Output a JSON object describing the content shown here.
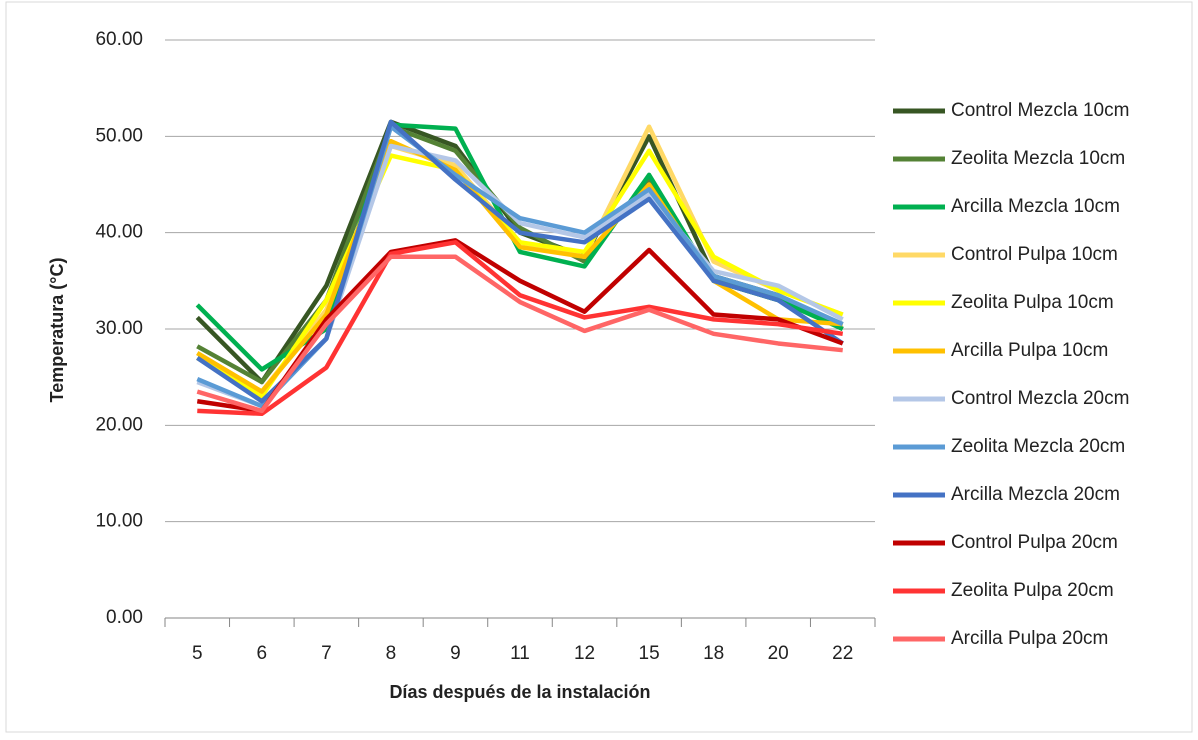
{
  "chart_data": {
    "type": "line",
    "x_label": "Días después de la instalación",
    "y_label": "Temperatura (°C)",
    "categories": [
      "5",
      "6",
      "7",
      "8",
      "9",
      "11",
      "12",
      "15",
      "18",
      "20",
      "22"
    ],
    "ylim": [
      0,
      60
    ],
    "yticks": [
      {
        "value": 0,
        "label": "0.00"
      },
      {
        "value": 10,
        "label": "10.00"
      },
      {
        "value": 20,
        "label": "20.00"
      },
      {
        "value": 30,
        "label": "30.00"
      },
      {
        "value": 40,
        "label": "40.00"
      },
      {
        "value": 50,
        "label": "50.00"
      },
      {
        "value": 60,
        "label": "60.00"
      }
    ],
    "grid": true,
    "legend": "right",
    "series": [
      {
        "name": "Control Mezcla 10cm",
        "color": "#375623",
        "values": [
          31.2,
          24.5,
          34.5,
          51.5,
          49,
          40,
          37.5,
          50,
          35.5,
          33.5,
          30
        ]
      },
      {
        "name": "Zeolita Mezcla 10cm",
        "color": "#548235",
        "values": [
          28.2,
          24.5,
          33,
          51,
          48.5,
          40.5,
          37,
          45.5,
          35,
          33,
          30.5
        ]
      },
      {
        "name": "Arcilla Mezcla 10cm",
        "color": "#00b050",
        "values": [
          32.5,
          25.8,
          30,
          51.2,
          50.8,
          38,
          36.5,
          46,
          35,
          33,
          30
        ]
      },
      {
        "name": "Control Pulpa 10cm",
        "color": "#ffd966",
        "values": [
          27.5,
          23.5,
          32,
          49,
          47,
          39,
          37.5,
          51,
          37,
          34,
          31.5
        ]
      },
      {
        "name": "Zeolita Pulpa 10cm",
        "color": "#ffff00",
        "values": [
          27,
          23,
          33,
          48,
          46.5,
          39,
          38,
          48.5,
          37.5,
          34,
          31.5
        ]
      },
      {
        "name": "Arcilla Pulpa 10cm",
        "color": "#ffc000",
        "values": [
          27.5,
          23.5,
          31.5,
          49.5,
          46.5,
          38.5,
          37.5,
          45,
          35,
          31,
          30.5
        ]
      },
      {
        "name": "Control Mezcla 20cm",
        "color": "#b4c7e7",
        "values": [
          24.5,
          22,
          29,
          49,
          47.5,
          41,
          39.5,
          44,
          36,
          34.5,
          31
        ]
      },
      {
        "name": "Zeolita Mezcla 20cm",
        "color": "#5b9bd5",
        "values": [
          24.8,
          22,
          29,
          51,
          46,
          41.5,
          40,
          44.5,
          35.5,
          33.5,
          30.5
        ]
      },
      {
        "name": "Arcilla Mezcla 20cm",
        "color": "#4472c4",
        "values": [
          27,
          22.5,
          29,
          51.5,
          45.5,
          40,
          39,
          43.5,
          35,
          33,
          28.5
        ]
      },
      {
        "name": "Control Pulpa 20cm",
        "color": "#c00000",
        "values": [
          22.5,
          21.5,
          31,
          38,
          39.2,
          35,
          31.8,
          38.2,
          31.5,
          31,
          28.5
        ]
      },
      {
        "name": "Zeolita Pulpa 20cm",
        "color": "#ff3333",
        "values": [
          21.5,
          21.2,
          26,
          37.8,
          39,
          33.5,
          31.2,
          32.3,
          31,
          30.5,
          29.5
        ]
      },
      {
        "name": "Arcilla Pulpa 20cm",
        "color": "#ff6666",
        "values": [
          23.5,
          21.5,
          30.5,
          37.5,
          37.5,
          32.8,
          29.8,
          32,
          29.5,
          28.5,
          27.8
        ]
      }
    ]
  }
}
